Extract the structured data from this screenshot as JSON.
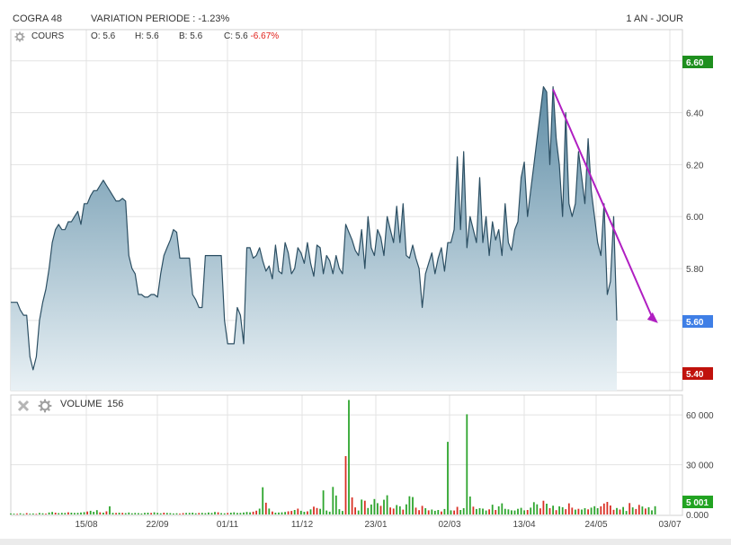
{
  "header": {
    "symbol": "COGRA 48",
    "variation": "VARIATION PERIODE : -1.23%",
    "period": "1 AN - JOUR"
  },
  "price_panel": {
    "label": "COURS",
    "open": "O: 5.6",
    "high": "H: 5.6",
    "low": "B: 5.6",
    "close_prefix": "C: 5.6",
    "close_change": "-6.67%",
    "badges": {
      "high": {
        "text": "6.60",
        "color": "#1e8f1e"
      },
      "last": {
        "text": "5.60",
        "color": "#3f7fe6"
      },
      "low": {
        "text": "5.40",
        "color": "#c0120c"
      }
    },
    "icons": [
      "settings-icon"
    ]
  },
  "volume_panel": {
    "label": "VOLUME",
    "value": "156",
    "badge": {
      "text": "5 001",
      "color": "#22a322"
    },
    "icons": [
      "close-icon",
      "settings-icon"
    ]
  },
  "colors": {
    "line": "#2c4f63",
    "area_top": "#5f8da6",
    "area_bottom": "#e9f1f5",
    "vol_up": "#2ea52e",
    "vol_down": "#d93025",
    "trend_arrow": "#b01fc2",
    "grid": "#e3e3e3"
  },
  "chart_data": {
    "type": "line",
    "title": "COGRA 48",
    "x_ticks": [
      "15/08",
      "22/09",
      "01/11",
      "11/12",
      "23/01",
      "02/03",
      "13/04",
      "24/05",
      "03/07"
    ],
    "price_axis": {
      "ylim": [
        5.33,
        6.72
      ],
      "ticks": [
        "6.40",
        "6.20",
        "6.00",
        "5.80"
      ]
    },
    "volume_axis": {
      "ylim": [
        0,
        72000
      ],
      "ticks": [
        "60 000",
        "30 000",
        "0.000"
      ]
    },
    "price": [
      5.67,
      5.67,
      5.67,
      5.64,
      5.62,
      5.62,
      5.46,
      5.41,
      5.46,
      5.6,
      5.67,
      5.72,
      5.8,
      5.9,
      5.95,
      5.97,
      5.95,
      5.95,
      5.98,
      5.98,
      6.0,
      6.02,
      5.97,
      6.05,
      6.05,
      6.08,
      6.1,
      6.1,
      6.12,
      6.14,
      6.12,
      6.1,
      6.08,
      6.06,
      6.06,
      6.07,
      6.06,
      5.85,
      5.8,
      5.78,
      5.7,
      5.7,
      5.69,
      5.69,
      5.7,
      5.7,
      5.69,
      5.78,
      5.85,
      5.88,
      5.91,
      5.95,
      5.94,
      5.84,
      5.84,
      5.84,
      5.84,
      5.7,
      5.68,
      5.65,
      5.65,
      5.85,
      5.85,
      5.85,
      5.85,
      5.85,
      5.85,
      5.6,
      5.51,
      5.51,
      5.51,
      5.65,
      5.62,
      5.51,
      5.88,
      5.88,
      5.84,
      5.85,
      5.88,
      5.83,
      5.79,
      5.81,
      5.76,
      5.89,
      5.79,
      5.78,
      5.9,
      5.86,
      5.78,
      5.8,
      5.88,
      5.86,
      5.82,
      5.9,
      5.82,
      5.77,
      5.89,
      5.88,
      5.78,
      5.85,
      5.83,
      5.78,
      5.85,
      5.8,
      5.78,
      5.97,
      5.94,
      5.91,
      5.87,
      5.85,
      5.95,
      5.8,
      6.0,
      5.88,
      5.85,
      5.95,
      5.92,
      5.85,
      6.0,
      5.95,
      5.9,
      6.04,
      5.9,
      6.05,
      5.85,
      5.84,
      5.89,
      5.84,
      5.8,
      5.65,
      5.78,
      5.82,
      5.86,
      5.78,
      5.84,
      5.88,
      5.79,
      5.9,
      5.9,
      5.95,
      6.23,
      5.95,
      6.25,
      5.88,
      6.0,
      5.95,
      5.9,
      6.15,
      5.9,
      6.0,
      5.85,
      5.98,
      5.91,
      5.95,
      5.85,
      6.05,
      5.9,
      5.87,
      5.95,
      5.98,
      6.15,
      6.21,
      6.0,
      6.1,
      6.2,
      6.3,
      6.4,
      6.5,
      6.48,
      6.2,
      6.5,
      6.3,
      6.2,
      6.0,
      6.4,
      6.05,
      6.0,
      6.05,
      6.25,
      6.15,
      6.05,
      6.3,
      6.1,
      6.0,
      5.9,
      5.85,
      6.05,
      5.7,
      5.75,
      6.0,
      5.6
    ],
    "volume": [
      600,
      500,
      400,
      700,
      300,
      800,
      500,
      600,
      400,
      900,
      700,
      500,
      1200,
      1500,
      1100,
      800,
      1000,
      900,
      1300,
      1100,
      900,
      1000,
      1200,
      1400,
      1800,
      2200,
      1600,
      2600,
      1300,
      1100,
      1900,
      4900,
      1000,
      900,
      1100,
      1000,
      800,
      1200,
      700,
      900,
      800,
      600,
      1000,
      1100,
      900,
      1300,
      1000,
      700,
      1100,
      900,
      800,
      600,
      700,
      500,
      800,
      900,
      1000,
      1100,
      700,
      900,
      1000,
      800,
      1200,
      900,
      1500,
      1300,
      800,
      700,
      900,
      1100,
      1300,
      900,
      1000,
      1200,
      1500,
      1300,
      1700,
      2300,
      3500,
      16400,
      7100,
      3600,
      1800,
      1100,
      1200,
      1300,
      1500,
      1900,
      2100,
      2700,
      3500,
      2200,
      1600,
      1900,
      3100,
      4700,
      3900,
      3400,
      14500,
      2400,
      1700,
      16600,
      11400,
      3200,
      2100,
      35200,
      69000,
      10300,
      4300,
      2400,
      9000,
      8300,
      3900,
      6000,
      9300,
      6800,
      5200,
      8900,
      11600,
      4200,
      3600,
      5700,
      4900,
      2900,
      6100,
      11000,
      10500,
      4100,
      2600,
      5200,
      3800,
      2500,
      3000,
      2200,
      2700,
      1800,
      3300,
      43800,
      2500,
      2400,
      4600,
      2700,
      3800,
      60400,
      10800,
      4700,
      3300,
      3800,
      3500,
      2400,
      3100,
      5900,
      2700,
      4900,
      6700,
      3400,
      3100,
      2500,
      2400,
      3400,
      4000,
      2500,
      2700,
      4100,
      7400,
      6100,
      3700,
      8300,
      6500,
      3800,
      5300,
      2600,
      4900,
      4400,
      3200,
      6700,
      4100,
      2900,
      3400,
      3000,
      3800,
      3100,
      4100,
      5000,
      3800,
      4900,
      6600,
      7600,
      5400,
      2800,
      3900,
      3000,
      4500,
      2100,
      6900,
      4300,
      3300,
      5800,
      4800,
      3600,
      4400,
      2500,
      5001
    ],
    "volume_colors": "ggrggrggrggrggrgggrgggggrgggrgrggrgrggggggggrgggrggggrrggggrgggggrggrgggggggrrggrgrggggrrgrggrgrrggggggggrgrrggrggggrggrrggrgggrrrgrgggrgggrrggggrggggrgrgggggggggrgggrrgrgrggrrrgrggrgggrrrrrgrggrgrrgrgg",
    "trend_arrow": {
      "from": {
        "index": 170,
        "price": 6.49
      },
      "to": {
        "index": 197,
        "price": 5.6
      }
    }
  }
}
